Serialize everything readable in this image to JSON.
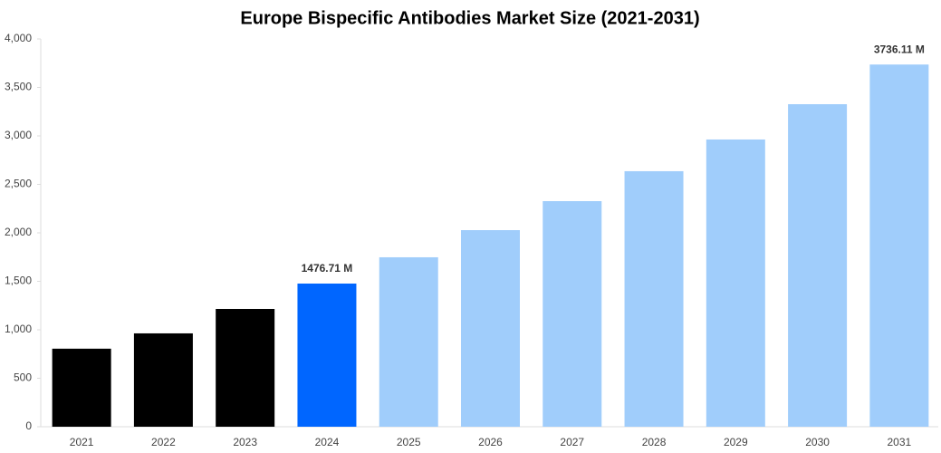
{
  "chart_data": {
    "type": "bar",
    "title": "Europe Bispecific Antibodies Market Size (2021-2031)",
    "categories": [
      "2021",
      "2022",
      "2023",
      "2024",
      "2025",
      "2026",
      "2027",
      "2028",
      "2029",
      "2030",
      "2031"
    ],
    "values": [
      805,
      963,
      1215,
      1476.71,
      1748,
      2028,
      2327,
      2636,
      2963,
      3327,
      3736.11
    ],
    "value_labels": [
      null,
      null,
      null,
      "1476.71 M",
      null,
      null,
      null,
      null,
      null,
      null,
      "3736.11 M"
    ],
    "colors": [
      "#000000",
      "#000000",
      "#000000",
      "#0066ff",
      "#a0cdfb",
      "#a0cdfb",
      "#a0cdfb",
      "#a0cdfb",
      "#a0cdfb",
      "#a0cdfb",
      "#a0cdfb"
    ],
    "ylim": [
      0,
      4000
    ],
    "yticks": [
      0,
      500,
      {
        "value": 1000,
        "label": "1,000"
      },
      {
        "value": 1500,
        "label": "1,500"
      },
      {
        "value": 2000,
        "label": "2,000"
      },
      {
        "value": 2500,
        "label": "2,500"
      },
      {
        "value": 3000,
        "label": "3,000"
      },
      {
        "value": 3500,
        "label": "3,500"
      },
      {
        "value": 4000,
        "label": "4,000"
      }
    ],
    "grid": false
  }
}
